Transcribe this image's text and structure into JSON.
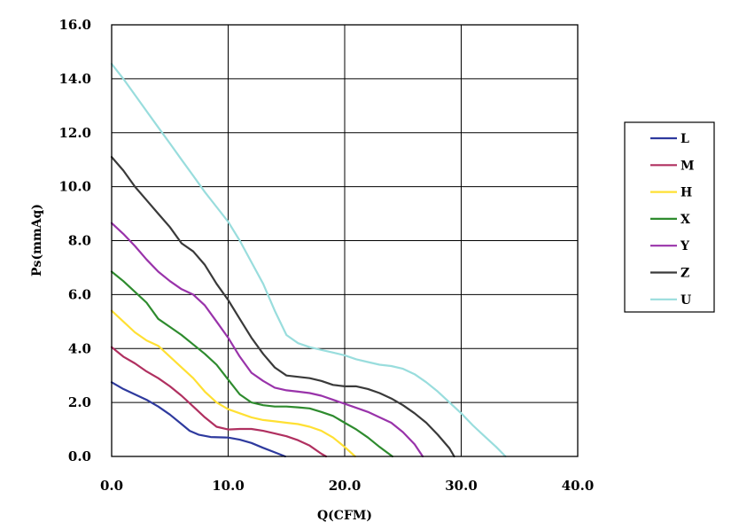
{
  "chart_data": {
    "type": "line",
    "xlabel": "Q(CFM)",
    "ylabel": "Ps(mmAq)",
    "xlim": [
      0,
      40
    ],
    "ylim": [
      0,
      16
    ],
    "x_ticks": [
      "0.0",
      "10.0",
      "20.0",
      "30.0",
      "40.0"
    ],
    "y_ticks": [
      "0.0",
      "2.0",
      "4.0",
      "6.0",
      "8.0",
      "10.0",
      "12.0",
      "14.0",
      "16.0"
    ],
    "grid": true,
    "legend_position": "right",
    "series": [
      {
        "name": "L",
        "color": "#2e3a9e",
        "x": [
          0,
          1,
          2,
          3,
          4,
          5,
          6,
          6.7,
          7.5,
          8.5,
          10,
          11,
          12,
          13,
          14,
          14.9
        ],
        "y": [
          2.75,
          2.5,
          2.3,
          2.1,
          1.85,
          1.55,
          1.2,
          0.95,
          0.8,
          0.72,
          0.7,
          0.62,
          0.5,
          0.32,
          0.15,
          0
        ]
      },
      {
        "name": "M",
        "color": "#b03060",
        "x": [
          0,
          1,
          2,
          3,
          4,
          5,
          6,
          7,
          8,
          9,
          10,
          11,
          12,
          13,
          14,
          15,
          16,
          17,
          18,
          18.4
        ],
        "y": [
          4.05,
          3.7,
          3.45,
          3.15,
          2.9,
          2.6,
          2.25,
          1.85,
          1.45,
          1.1,
          1.0,
          1.02,
          1.02,
          0.95,
          0.85,
          0.75,
          0.6,
          0.4,
          0.1,
          0
        ]
      },
      {
        "name": "H",
        "color": "#ffe033",
        "x": [
          0,
          1,
          2,
          3,
          4,
          5,
          6,
          7,
          8,
          9,
          10,
          11,
          12,
          13,
          14,
          15,
          16,
          17,
          18,
          19,
          20,
          20.9
        ],
        "y": [
          5.4,
          5.0,
          4.6,
          4.3,
          4.1,
          3.7,
          3.3,
          2.9,
          2.4,
          2.0,
          1.75,
          1.6,
          1.45,
          1.35,
          1.3,
          1.25,
          1.2,
          1.1,
          0.95,
          0.7,
          0.35,
          0
        ]
      },
      {
        "name": "X",
        "color": "#2e8b2e",
        "x": [
          0,
          1,
          2,
          3,
          3.5,
          4,
          5,
          6,
          7,
          8,
          9,
          10,
          11,
          12,
          13,
          14,
          15,
          16,
          17,
          18,
          19,
          20,
          21,
          22,
          23,
          24.1
        ],
        "y": [
          6.85,
          6.5,
          6.1,
          5.7,
          5.4,
          5.1,
          4.8,
          4.5,
          4.15,
          3.8,
          3.4,
          2.85,
          2.3,
          2.0,
          1.9,
          1.85,
          1.85,
          1.82,
          1.78,
          1.65,
          1.5,
          1.25,
          1.0,
          0.7,
          0.35,
          0
        ]
      },
      {
        "name": "Y",
        "color": "#9933aa",
        "x": [
          0,
          1,
          2,
          3,
          4,
          5,
          6,
          7,
          8,
          9,
          10,
          11,
          12,
          13,
          14,
          15,
          16,
          17,
          18,
          19,
          20,
          21,
          22,
          23,
          24,
          25,
          26,
          26.7
        ],
        "y": [
          8.65,
          8.25,
          7.8,
          7.3,
          6.85,
          6.5,
          6.2,
          6.0,
          5.6,
          5.0,
          4.4,
          3.7,
          3.1,
          2.8,
          2.55,
          2.45,
          2.4,
          2.35,
          2.25,
          2.1,
          1.95,
          1.8,
          1.65,
          1.45,
          1.25,
          0.9,
          0.45,
          0
        ]
      },
      {
        "name": "Z",
        "color": "#3a3a3a",
        "x": [
          0,
          1,
          2,
          3,
          4,
          5,
          6,
          7,
          8,
          9,
          10,
          11,
          12,
          13,
          14,
          15,
          16,
          17,
          18,
          19,
          20,
          21,
          22,
          23,
          24,
          25,
          26,
          27,
          28,
          29,
          29.4
        ],
        "y": [
          11.1,
          10.6,
          10.0,
          9.5,
          9.0,
          8.5,
          7.9,
          7.6,
          7.1,
          6.4,
          5.8,
          5.1,
          4.4,
          3.8,
          3.3,
          3.0,
          2.95,
          2.9,
          2.8,
          2.65,
          2.6,
          2.6,
          2.5,
          2.35,
          2.15,
          1.9,
          1.6,
          1.25,
          0.8,
          0.3,
          0
        ]
      },
      {
        "name": "U",
        "color": "#99dddd",
        "x": [
          0,
          1,
          2,
          3,
          4,
          5,
          6,
          7,
          8,
          9,
          10,
          11,
          12,
          13,
          14,
          15,
          16,
          17,
          18,
          19,
          20,
          21,
          22,
          23,
          24,
          25,
          26,
          27,
          28,
          29,
          30,
          31,
          32,
          33,
          33.8
        ],
        "y": [
          14.55,
          14.0,
          13.4,
          12.8,
          12.2,
          11.6,
          11.0,
          10.4,
          9.8,
          9.25,
          8.7,
          8.0,
          7.2,
          6.4,
          5.4,
          4.5,
          4.2,
          4.05,
          3.95,
          3.85,
          3.75,
          3.6,
          3.5,
          3.4,
          3.35,
          3.25,
          3.05,
          2.75,
          2.4,
          2.0,
          1.6,
          1.15,
          0.75,
          0.35,
          0
        ]
      }
    ]
  }
}
